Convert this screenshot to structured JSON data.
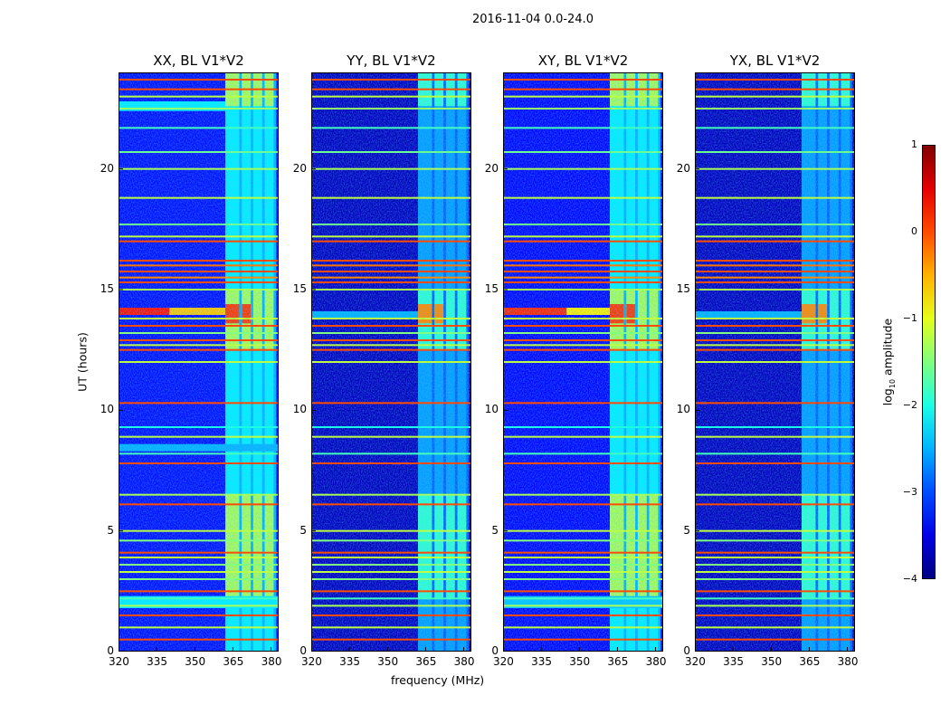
{
  "chart_data": {
    "type": "heatmap",
    "title": "2016-11-04 0.0-24.0",
    "xlabel": "frequency (MHz)",
    "ylabel": "UT (hours)",
    "xlim": [
      320,
      383
    ],
    "ylim": [
      0,
      24
    ],
    "xticks": [
      320,
      335,
      350,
      365,
      380
    ],
    "yticks": [
      0,
      5,
      10,
      15,
      20
    ],
    "colorbar": {
      "label_main": "log",
      "label_sub": "10",
      "label_rest": " amplitude",
      "range": [
        -4,
        1
      ],
      "ticks": [
        1,
        0,
        -1,
        -2,
        -3,
        -4
      ],
      "tick_labels": [
        "1",
        "0",
        "−1",
        "−2",
        "−3",
        "−4"
      ],
      "colormap": "jet"
    },
    "panels": [
      {
        "title": "XX, BL V1*V2",
        "background": -3.3,
        "column_level": -2.5,
        "block_level": -1.3,
        "hot_level": 0.1,
        "extra_bands": [
          {
            "ut": [
              1.8,
              2.3
            ],
            "f": [
              320,
              383
            ],
            "level": -2.2
          },
          {
            "ut": [
              8.3,
              8.6
            ],
            "f": [
              320,
              383
            ],
            "level": -2.5
          },
          {
            "ut": [
              22.4,
              22.8
            ],
            "f": [
              320,
              362
            ],
            "level": -2.2
          },
          {
            "ut": [
              13.95,
              14.25
            ],
            "f": [
              320,
              340
            ],
            "level": 0.3
          },
          {
            "ut": [
              13.95,
              14.25
            ],
            "f": [
              340,
              362
            ],
            "level": -0.6
          }
        ]
      },
      {
        "title": "YY, BL V1*V2",
        "background": -3.7,
        "column_level": -2.9,
        "block_level": -1.9,
        "hot_level": -0.3,
        "extra_bands": [
          {
            "ut": [
              13.8,
              14.1
            ],
            "f": [
              320,
              362
            ],
            "level": -2.5
          }
        ]
      },
      {
        "title": "XY, BL V1*V2",
        "background": -3.35,
        "column_level": -2.5,
        "block_level": -1.3,
        "hot_level": 0.1,
        "extra_bands": [
          {
            "ut": [
              1.8,
              2.3
            ],
            "f": [
              320,
              383
            ],
            "level": -2.4
          },
          {
            "ut": [
              13.95,
              14.25
            ],
            "f": [
              320,
              345
            ],
            "level": 0.2
          },
          {
            "ut": [
              13.95,
              14.25
            ],
            "f": [
              345,
              362
            ],
            "level": -0.8
          }
        ]
      },
      {
        "title": "YX, BL V1*V2",
        "background": -3.7,
        "column_level": -2.9,
        "block_level": -1.9,
        "hot_level": -0.3,
        "extra_bands": [
          {
            "ut": [
              13.8,
              14.1
            ],
            "f": [
              320,
              362
            ],
            "level": -2.5
          }
        ]
      }
    ],
    "columns_mhz": [
      [
        362,
        367.5
      ],
      [
        368.5,
        372
      ],
      [
        373,
        376.5
      ],
      [
        377.5,
        381
      ]
    ],
    "blocks_ut": [
      [
        2.2,
        6.5
      ],
      [
        12.5,
        15.0
      ],
      [
        22.6,
        24.0
      ]
    ],
    "hot_ut": [
      13.6,
      14.4
    ],
    "hlines": [
      {
        "ut": 0.5,
        "level": 0.0
      },
      {
        "ut": 1.0,
        "level": -1.2
      },
      {
        "ut": 1.5,
        "level": 0.0
      },
      {
        "ut": 1.9,
        "level": -1.3
      },
      {
        "ut": 2.2,
        "level": -1.8
      },
      {
        "ut": 2.5,
        "level": 0.0
      },
      {
        "ut": 3.0,
        "level": -1.5
      },
      {
        "ut": 3.3,
        "level": -1.2
      },
      {
        "ut": 3.6,
        "level": -1.5
      },
      {
        "ut": 3.9,
        "level": -1.2
      },
      {
        "ut": 4.1,
        "level": 0.0
      },
      {
        "ut": 4.6,
        "level": -1.5
      },
      {
        "ut": 5.0,
        "level": -1.2
      },
      {
        "ut": 6.1,
        "level": 0.0
      },
      {
        "ut": 6.5,
        "level": -1.3
      },
      {
        "ut": 7.8,
        "level": 0.0
      },
      {
        "ut": 8.2,
        "level": -1.8
      },
      {
        "ut": 8.9,
        "level": -1.2
      },
      {
        "ut": 9.3,
        "level": -2.0
      },
      {
        "ut": 10.3,
        "level": 0.0
      },
      {
        "ut": 12.0,
        "level": -1.2
      },
      {
        "ut": 12.5,
        "level": 0.0
      },
      {
        "ut": 12.7,
        "level": -1.2
      },
      {
        "ut": 12.9,
        "level": 0.0
      },
      {
        "ut": 13.2,
        "level": -1.5
      },
      {
        "ut": 13.5,
        "level": 0.0
      },
      {
        "ut": 13.8,
        "level": -1.2
      },
      {
        "ut": 15.0,
        "level": -1.3
      },
      {
        "ut": 15.3,
        "level": 0.0
      },
      {
        "ut": 15.5,
        "level": -0.3
      },
      {
        "ut": 15.75,
        "level": 0.0
      },
      {
        "ut": 16.0,
        "level": -0.2
      },
      {
        "ut": 16.2,
        "level": 0.0
      },
      {
        "ut": 17.0,
        "level": 0.0
      },
      {
        "ut": 17.2,
        "level": -1.2
      },
      {
        "ut": 17.7,
        "level": -1.6
      },
      {
        "ut": 18.8,
        "level": -1.2
      },
      {
        "ut": 20.0,
        "level": -1.3
      },
      {
        "ut": 20.7,
        "level": -1.6
      },
      {
        "ut": 21.7,
        "level": -1.8
      },
      {
        "ut": 22.5,
        "level": -1.4
      },
      {
        "ut": 23.0,
        "level": -1.2
      },
      {
        "ut": 23.3,
        "level": 0.0
      },
      {
        "ut": 23.7,
        "level": 0.0
      }
    ]
  }
}
